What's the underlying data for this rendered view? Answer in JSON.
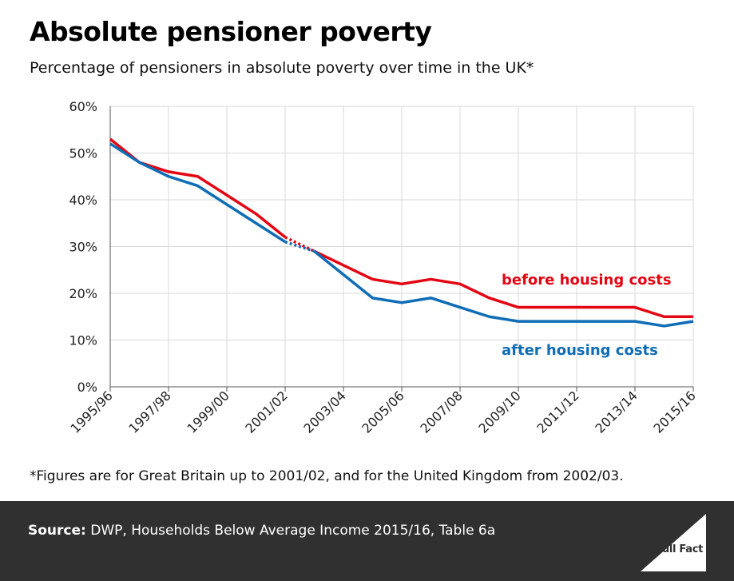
{
  "title": "Absolute pensioner poverty",
  "subtitle": "Percentage of pensioners in absolute poverty over time in the UK*",
  "footnote": "*Figures are for Great Britain up to 2001/02, and for the United Kingdom from 2002/03.",
  "source": {
    "label": "Source:",
    "text": " DWP, Households Below Average Income 2015/16, Table 6a"
  },
  "logo_text": "Full Fact",
  "colors": {
    "before": "#e30613",
    "after": "#0f6db5",
    "grid": "#d9d9d9",
    "footer": "#303030"
  },
  "chart_data": {
    "type": "line",
    "title": "Absolute pensioner poverty",
    "ylim": [
      0,
      60
    ],
    "yticks": [
      "0%",
      "10%",
      "20%",
      "30%",
      "40%",
      "50%",
      "60%"
    ],
    "x": [
      "1995/96",
      "1996/97",
      "1997/98",
      "1998/99",
      "1999/00",
      "2000/01",
      "2001/02",
      "2002/03",
      "2003/04",
      "2004/05",
      "2005/06",
      "2006/07",
      "2007/08",
      "2008/09",
      "2009/10",
      "2010/11",
      "2011/12",
      "2012/13",
      "2013/14",
      "2014/15",
      "2015/16"
    ],
    "xticklabels": [
      "1995/96",
      "1997/98",
      "1999/00",
      "2001/02",
      "2003/04",
      "2005/06",
      "2007/08",
      "2009/10",
      "2011/12",
      "2013/14",
      "2015/16"
    ],
    "series": [
      {
        "name": "before housing costs",
        "values": [
          53,
          48,
          46,
          45,
          41,
          37,
          32,
          29,
          26,
          23,
          22,
          23,
          22,
          19,
          17,
          17,
          17,
          17,
          17,
          15,
          15
        ]
      },
      {
        "name": "after housing costs",
        "values": [
          52,
          48,
          45,
          43,
          39,
          35,
          31,
          29,
          24,
          19,
          18,
          19,
          17,
          15,
          14,
          14,
          14,
          14,
          14,
          13,
          14
        ]
      }
    ],
    "note": "Dotted segment between 2001/02 and 2002/03 marks the change from Great Britain to United Kingdom figures",
    "grid": true
  }
}
